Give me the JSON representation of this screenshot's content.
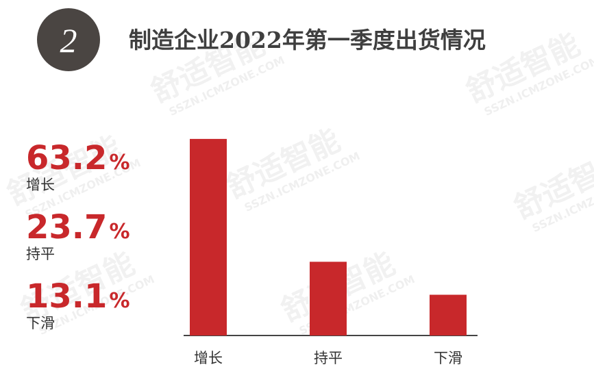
{
  "badge": "2",
  "watermark": "舒适智能",
  "watermark_url": "SSZN.ICMZONE.COM",
  "chart_data": {
    "type": "bar",
    "title": "制造企业2022年第一季度出货情况",
    "categories": [
      "增长",
      "持平",
      "下滑"
    ],
    "values": [
      63.2,
      23.7,
      13.1
    ],
    "value_labels": [
      "63.2%",
      "23.7%",
      "13.1%"
    ],
    "color": "#c8282b",
    "ylim": [
      0,
      70
    ]
  }
}
